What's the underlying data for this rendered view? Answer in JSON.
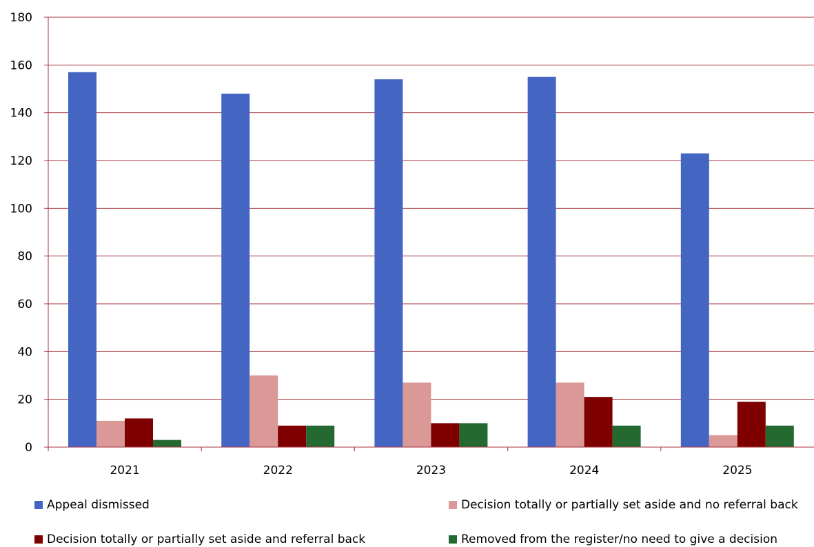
{
  "chart_data": {
    "type": "bar",
    "title": "",
    "xlabel": "",
    "ylabel": "",
    "categories": [
      "2021",
      "2022",
      "2023",
      "2024",
      "2025"
    ],
    "ylim": [
      0,
      180
    ],
    "yticks": [
      0,
      20,
      40,
      60,
      80,
      100,
      120,
      140,
      160,
      180
    ],
    "grid": true,
    "legend_placement": "bottom",
    "series": [
      {
        "name": "Appeal dismissed",
        "color": "#4565c3",
        "values": [
          157,
          148,
          154,
          155,
          123
        ]
      },
      {
        "name": "Decision totally or partially set aside and no referral back",
        "color": "#da9896",
        "values": [
          11,
          30,
          27,
          27,
          5
        ]
      },
      {
        "name": "Decision totally or partially set aside and referral back",
        "color": "#7f0000",
        "values": [
          12,
          9,
          10,
          21,
          19
        ]
      },
      {
        "name": "Removed from the register/no need to give a decision",
        "color": "#246a30",
        "values": [
          3,
          9,
          10,
          9,
          9
        ]
      }
    ]
  },
  "colors": {
    "gridline": "#a8323c",
    "axis": "#a8323c"
  }
}
